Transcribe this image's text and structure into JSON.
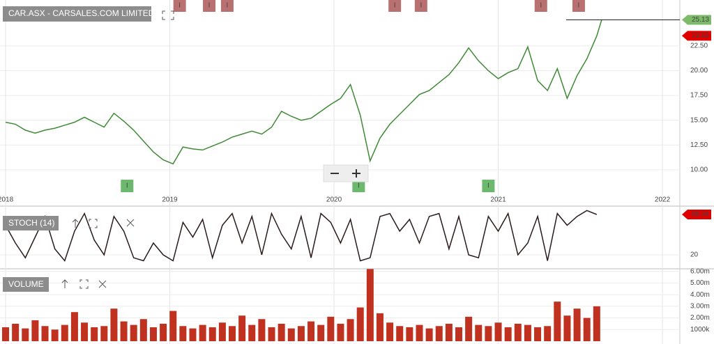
{
  "chart_data": [
    {
      "type": "line",
      "title": "CAR.ASX - CARSALES.COM LIMITED",
      "xlim": [
        2017.966,
        2022.106
      ],
      "xticks": [
        2018,
        2019,
        2020,
        2021,
        2022
      ],
      "ylim": [
        7.6,
        27.13
      ],
      "yticks": [
        {
          "value": 10,
          "label": "10.00"
        },
        {
          "value": 12.5,
          "label": "12.50"
        },
        {
          "value": 15,
          "label": "15.00"
        },
        {
          "value": 17.5,
          "label": "17.50"
        },
        {
          "value": 20,
          "label": "20.00"
        },
        {
          "value": 22.5,
          "label": "22.50"
        }
      ],
      "grid": true,
      "x": [
        2018.0,
        2018.06,
        2018.12,
        2018.18,
        2018.24,
        2018.3,
        2018.36,
        2018.42,
        2018.48,
        2018.54,
        2018.6,
        2018.66,
        2018.72,
        2018.78,
        2018.84,
        2018.9,
        2018.96,
        2019.02,
        2019.08,
        2019.14,
        2019.2,
        2019.26,
        2019.32,
        2019.38,
        2019.44,
        2019.5,
        2019.56,
        2019.62,
        2019.68,
        2019.74,
        2019.8,
        2019.86,
        2019.92,
        2019.98,
        2020.04,
        2020.1,
        2020.16,
        2020.22,
        2020.28,
        2020.34,
        2020.4,
        2020.46,
        2020.52,
        2020.58,
        2020.64,
        2020.7,
        2020.76,
        2020.82,
        2020.88,
        2020.94,
        2021.0,
        2021.06,
        2021.12,
        2021.18,
        2021.24,
        2021.3,
        2021.36,
        2021.42,
        2021.48,
        2021.54,
        2021.6,
        2021.63
      ],
      "series": [
        {
          "color": "#3f8a35",
          "values": [
            14.8,
            14.6,
            14.0,
            13.7,
            14.0,
            14.2,
            14.5,
            14.8,
            15.3,
            14.8,
            14.3,
            15.7,
            14.9,
            14.0,
            12.9,
            11.8,
            11.0,
            10.6,
            12.3,
            12.1,
            12.0,
            12.4,
            12.8,
            13.3,
            13.6,
            13.9,
            13.6,
            14.3,
            15.9,
            15.4,
            15.0,
            15.2,
            15.9,
            16.6,
            17.2,
            18.6,
            15.5,
            10.9,
            13.2,
            14.6,
            15.6,
            16.6,
            17.6,
            18.0,
            18.8,
            19.6,
            20.8,
            22.3,
            21.0,
            20.0,
            19.2,
            19.8,
            20.2,
            22.4,
            19.0,
            18.0,
            20.2,
            17.2,
            19.5,
            21.2,
            23.5,
            25.13
          ]
        }
      ],
      "indicator_value": 23.52,
      "markers": {
        "label": "I",
        "top": [
          2019.06,
          2019.24,
          2019.35,
          2020.37,
          2020.53,
          2021.26,
          2021.49
        ],
        "bottom": [
          2018.74,
          2020.15,
          2020.94
        ]
      }
    },
    {
      "type": "line",
      "title": "STOCH (14)",
      "xlim": [
        2017.966,
        2022.106
      ],
      "ylim": [
        -2.4,
        100.1
      ],
      "yticks": [
        20
      ],
      "x": [
        2018.0,
        2018.06,
        2018.12,
        2018.18,
        2018.24,
        2018.3,
        2018.36,
        2018.42,
        2018.48,
        2018.54,
        2018.6,
        2018.66,
        2018.72,
        2018.78,
        2018.84,
        2018.9,
        2018.96,
        2019.02,
        2019.08,
        2019.14,
        2019.2,
        2019.26,
        2019.32,
        2019.38,
        2019.44,
        2019.5,
        2019.56,
        2019.62,
        2019.68,
        2019.74,
        2019.8,
        2019.86,
        2019.92,
        2019.98,
        2020.04,
        2020.1,
        2020.16,
        2020.22,
        2020.28,
        2020.34,
        2020.4,
        2020.46,
        2020.52,
        2020.58,
        2020.64,
        2020.7,
        2020.76,
        2020.82,
        2020.88,
        2020.94,
        2021.0,
        2021.06,
        2021.12,
        2021.18,
        2021.24,
        2021.3,
        2021.36,
        2021.42,
        2021.48,
        2021.54,
        2021.6
      ],
      "series": [
        {
          "color": "#2b1a1a",
          "values": [
            70,
            40,
            15,
            50,
            85,
            30,
            10,
            60,
            90,
            45,
            20,
            85,
            60,
            15,
            10,
            40,
            20,
            10,
            75,
            50,
            80,
            15,
            70,
            90,
            40,
            85,
            20,
            90,
            55,
            30,
            85,
            15,
            90,
            75,
            40,
            80,
            10,
            15,
            85,
            90,
            60,
            80,
            40,
            85,
            90,
            30,
            85,
            20,
            15,
            85,
            60,
            90,
            20,
            40,
            85,
            10,
            90,
            70,
            85,
            95,
            88.34
          ]
        }
      ]
    },
    {
      "type": "bar",
      "title": "VOLUME",
      "xlim": [
        2017.966,
        2022.106
      ],
      "ylim": [
        0,
        6100000
      ],
      "yticks": [
        {
          "value": 1000000,
          "label": "1000k"
        },
        {
          "value": 2000000,
          "label": "2.00m"
        },
        {
          "value": 3000000,
          "label": "3.00m"
        },
        {
          "value": 4000000,
          "label": "4.00m"
        },
        {
          "value": 5000000,
          "label": "5.00m"
        },
        {
          "value": 6000000,
          "label": "6.00m"
        }
      ],
      "color": "#c0321f",
      "x": [
        2018.0,
        2018.06,
        2018.12,
        2018.18,
        2018.24,
        2018.3,
        2018.36,
        2018.42,
        2018.48,
        2018.54,
        2018.6,
        2018.66,
        2018.72,
        2018.78,
        2018.84,
        2018.9,
        2018.96,
        2019.02,
        2019.08,
        2019.14,
        2019.2,
        2019.26,
        2019.32,
        2019.38,
        2019.44,
        2019.5,
        2019.56,
        2019.62,
        2019.68,
        2019.74,
        2019.8,
        2019.86,
        2019.92,
        2019.98,
        2020.04,
        2020.1,
        2020.16,
        2020.22,
        2020.28,
        2020.34,
        2020.4,
        2020.46,
        2020.52,
        2020.58,
        2020.64,
        2020.7,
        2020.76,
        2020.82,
        2020.88,
        2020.94,
        2021.0,
        2021.06,
        2021.12,
        2021.18,
        2021.24,
        2021.3,
        2021.36,
        2021.42,
        2021.48,
        2021.54,
        2021.6
      ],
      "values": [
        1200000,
        1500000,
        1100000,
        1800000,
        1300000,
        1000000,
        1400000,
        2500000,
        1600000,
        1200000,
        1300000,
        2800000,
        1700000,
        1400000,
        1900000,
        1200000,
        1500000,
        2600000,
        1300000,
        1100000,
        1400000,
        1200000,
        1600000,
        1300000,
        2200000,
        1400000,
        1900000,
        1200000,
        1500000,
        1100000,
        1300000,
        1700000,
        1400000,
        2100000,
        1500000,
        1900000,
        2900000,
        6200000,
        2400000,
        1600000,
        1300000,
        1200000,
        1400000,
        1100000,
        1300000,
        1500000,
        1200000,
        2100000,
        1400000,
        1300000,
        1600000,
        1200000,
        1500000,
        1400000,
        1200000,
        1300000,
        3400000,
        2200000,
        2800000,
        2000000,
        3000000
      ]
    }
  ]
}
